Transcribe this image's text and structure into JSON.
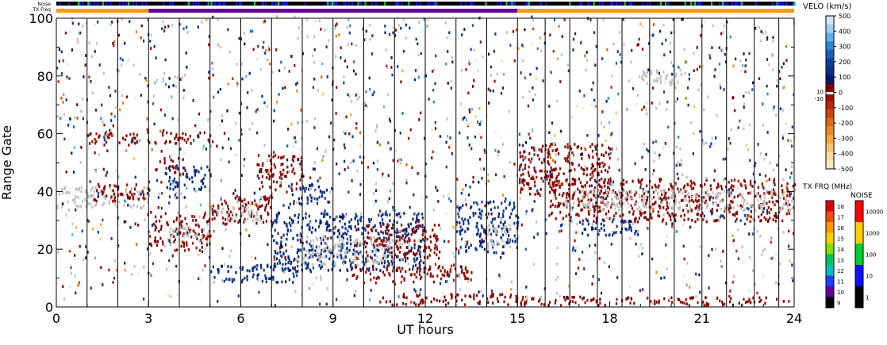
{
  "chart_data": {
    "type": "heatmap",
    "top_bars": {
      "noise_label": "Noise",
      "txfreq_label": "TX Freq",
      "txfreq_segments": [
        {
          "start": 0,
          "end": 3,
          "color": "#ff9900"
        },
        {
          "start": 3,
          "end": 15,
          "color": "#660099"
        },
        {
          "start": 15,
          "end": 24,
          "color": "#ff9900"
        }
      ]
    },
    "xlabel": "UT hours",
    "ylabel": "Range Gate",
    "xlim": [
      0,
      24
    ],
    "ylim": [
      0,
      100
    ],
    "x_ticks": [
      "0",
      "3",
      "6",
      "9",
      "12",
      "15",
      "18",
      "21",
      "24"
    ],
    "y_ticks": [
      "0",
      "20",
      "40",
      "60",
      "80",
      "100"
    ],
    "scan_boundaries_ut": [
      1.0,
      2.0,
      3.0,
      4.0,
      5.0,
      6.0,
      7.0,
      8.0,
      9.0,
      10.0,
      11.0,
      12.0,
      13.0,
      14.0,
      15.0,
      15.9,
      16.7,
      17.6,
      18.4,
      19.3,
      20.1,
      21.0,
      21.8,
      22.7,
      23.5
    ],
    "ground_scatter_color": "#c0c0c0",
    "regions": [
      {
        "x": [
          0.0,
          3.0
        ],
        "y": [
          33,
          41
        ],
        "kind": "ground"
      },
      {
        "x": [
          1.2,
          3.0
        ],
        "y": [
          36,
          42
        ],
        "kind": "neg"
      },
      {
        "x": [
          3.0,
          5.0
        ],
        "y": [
          19,
          31
        ],
        "kind": "neg"
      },
      {
        "x": [
          3.6,
          5.0
        ],
        "y": [
          22,
          27
        ],
        "kind": "ground"
      },
      {
        "x": [
          3.2,
          4.2
        ],
        "y": [
          45,
          51
        ],
        "kind": "neg"
      },
      {
        "x": [
          3.5,
          5.0
        ],
        "y": [
          40,
          48
        ],
        "kind": "pos"
      },
      {
        "x": [
          5.0,
          7.0
        ],
        "y": [
          28,
          38
        ],
        "kind": "neg"
      },
      {
        "x": [
          5.2,
          6.6
        ],
        "y": [
          29,
          36
        ],
        "kind": "ground"
      },
      {
        "x": [
          6.5,
          8.0
        ],
        "y": [
          40,
          52
        ],
        "kind": "neg"
      },
      {
        "x": [
          7.6,
          8.9
        ],
        "y": [
          35,
          42
        ],
        "kind": "pos"
      },
      {
        "x": [
          5.0,
          8.0
        ],
        "y": [
          8,
          14
        ],
        "kind": "pos"
      },
      {
        "x": [
          7.0,
          12.0
        ],
        "y": [
          12,
          32
        ],
        "kind": "pos"
      },
      {
        "x": [
          8.0,
          11.5
        ],
        "y": [
          14,
          24
        ],
        "kind": "ground"
      },
      {
        "x": [
          10.0,
          12.5
        ],
        "y": [
          16,
          28
        ],
        "kind": "neg"
      },
      {
        "x": [
          9.5,
          13.5
        ],
        "y": [
          8,
          14
        ],
        "kind": "neg"
      },
      {
        "x": [
          10.5,
          15.0
        ],
        "y": [
          0,
          4
        ],
        "kind": "neg"
      },
      {
        "x": [
          13.0,
          15.0
        ],
        "y": [
          18,
          36
        ],
        "kind": "pos"
      },
      {
        "x": [
          14.0,
          15.0
        ],
        "y": [
          20,
          28
        ],
        "kind": "ground"
      },
      {
        "x": [
          15.0,
          18.0
        ],
        "y": [
          38,
          56
        ],
        "kind": "neg"
      },
      {
        "x": [
          16.0,
          24.0
        ],
        "y": [
          29,
          44
        ],
        "kind": "neg"
      },
      {
        "x": [
          16.5,
          24.0
        ],
        "y": [
          33,
          40
        ],
        "kind": "ground"
      },
      {
        "x": [
          17.0,
          19.0
        ],
        "y": [
          24,
          30
        ],
        "kind": "pos"
      },
      {
        "x": [
          19.0,
          20.5
        ],
        "y": [
          76,
          82
        ],
        "kind": "ground"
      },
      {
        "x": [
          15.0,
          24.0
        ],
        "y": [
          0,
          3
        ],
        "kind": "neg"
      },
      {
        "x": [
          1.0,
          5.0
        ],
        "y": [
          56,
          60
        ],
        "kind": "neg"
      }
    ],
    "velo_colorbar": {
      "title": "VELO (km/s)",
      "ticks": [
        "500",
        "400",
        "300",
        "200",
        "100",
        "0",
        "-100",
        "-200",
        "-300",
        "-400",
        "-500"
      ],
      "mid_labels": [
        "10",
        "-10"
      ],
      "colors": [
        "#d2e8f8",
        "#9dd0f0",
        "#5fb0e8",
        "#2f86d6",
        "#1d5fb7",
        "#103e9a",
        "#082f80",
        "#001a66",
        "#7f0000",
        "#a01000",
        "#b82808",
        "#cc4410",
        "#dd6a18",
        "#ea8a25",
        "#f2a545",
        "#f8c070",
        "#fcd9a0",
        "#fde8c0"
      ],
      "range": [
        -500,
        500
      ]
    },
    "txfrq_colorbar": {
      "title": "TX FRQ (MHz)",
      "ticks": [
        "18",
        "17",
        "16",
        "15",
        "14",
        "13",
        "12",
        "11",
        "10",
        "9"
      ],
      "colors": [
        "#e00000",
        "#f05000",
        "#ff9900",
        "#ffd000",
        "#80e000",
        "#00c060",
        "#00c0c0",
        "#2040ff",
        "#660099",
        "#000000"
      ]
    },
    "noise_colorbar": {
      "title": "NOISE",
      "ticks": [
        "10000",
        "1000",
        "100",
        "10",
        "1"
      ],
      "colors": [
        "#ff0000",
        "#ffd000",
        "#00cc33",
        "#1010ff",
        "#000000"
      ]
    }
  }
}
